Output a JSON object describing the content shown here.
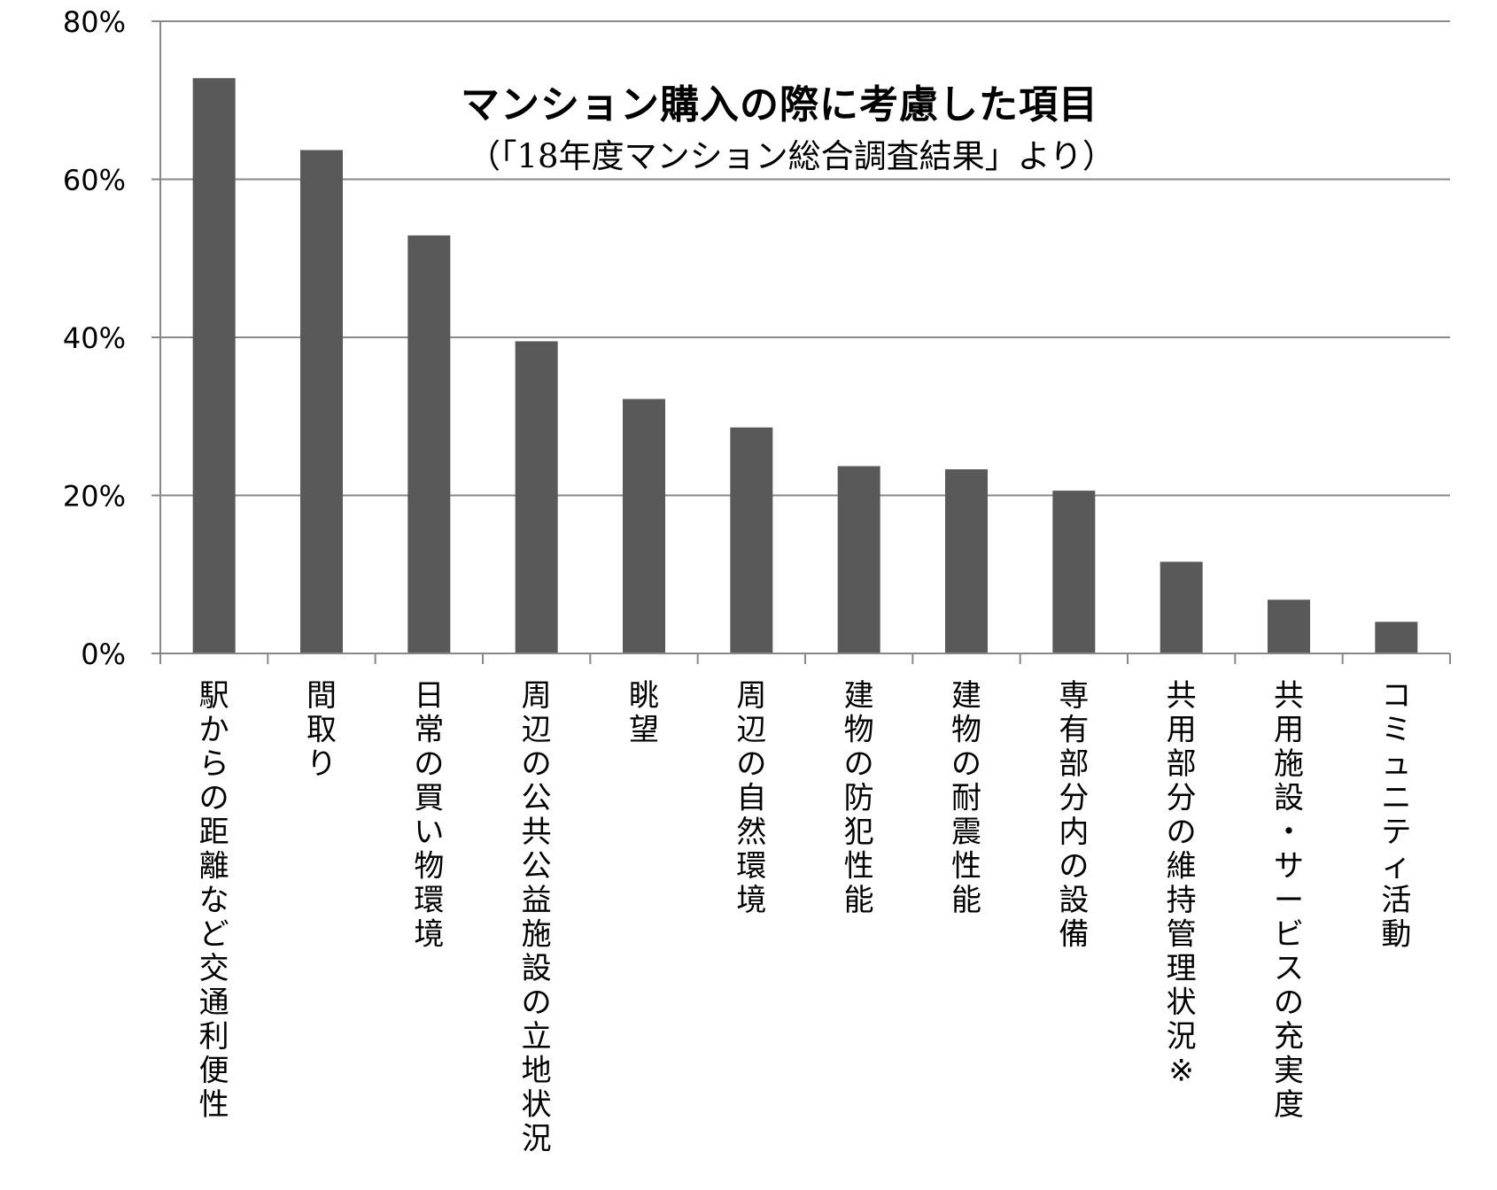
{
  "chart_data": {
    "type": "bar",
    "title": "マンション購入の際に考慮した項目",
    "subtitle": "（「18年度マンション総合調査結果」より）",
    "categories": [
      "駅からの距離など交通利便性",
      "間取り",
      "日常の買い物環境",
      "周辺の公共公益施設の立地状況",
      "眺望",
      "周辺の自然環境",
      "建物の防犯性能",
      "建物の耐震性能",
      "専有部分内の設備",
      "共用部分の維持管理状況※",
      "共用施設・サービスの充実度",
      "コミュニティ活動"
    ],
    "values": [
      72.8,
      63.7,
      52.9,
      39.5,
      32.2,
      28.6,
      23.7,
      23.3,
      20.6,
      11.6,
      6.8,
      4.0
    ],
    "ylim": [
      0,
      80
    ],
    "yticks": [
      0,
      20,
      40,
      60,
      80
    ],
    "ytick_labels": [
      "0%",
      "20%",
      "40%",
      "60%",
      "80%"
    ],
    "grid": true,
    "bar_color": "#595959",
    "grid_color": "#888888"
  }
}
